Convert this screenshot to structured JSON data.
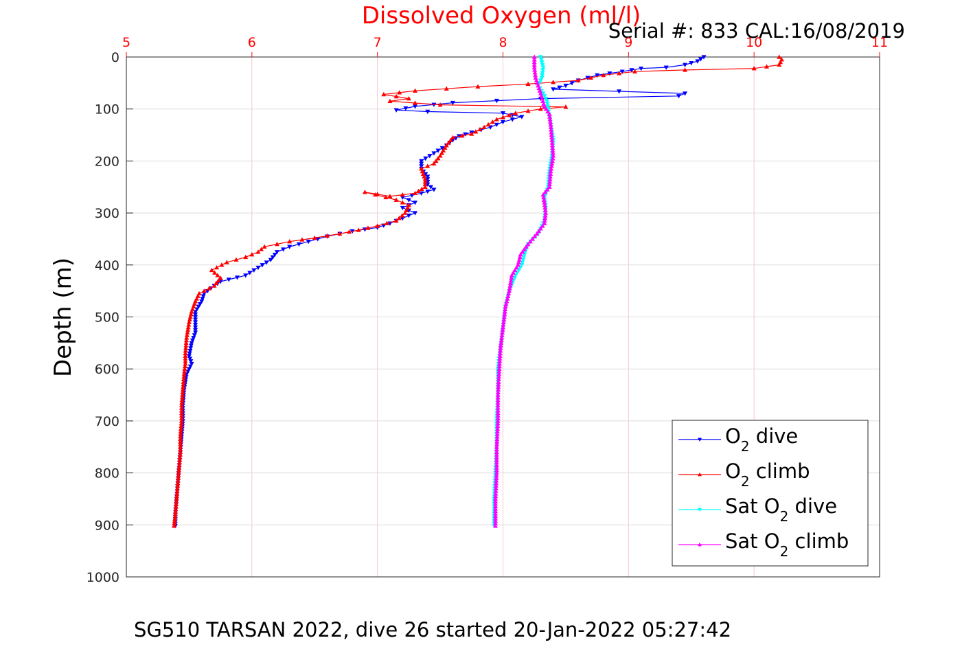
{
  "chart_data": {
    "type": "line",
    "title": "Dissolved Oxygen (ml/l)",
    "serial_label": "Serial #: 833  CAL:16/08/2019",
    "caption": "SG510 TARSAN 2022, dive 26 started 20-Jan-2022 05:27:42",
    "xlabel": "Dissolved Oxygen (ml/l)",
    "ylabel": "Depth (m)",
    "xlim": [
      5,
      11
    ],
    "ylim": [
      0,
      1000
    ],
    "y_reversed": true,
    "x_axis_position": "top",
    "xticks": [
      "5",
      "6",
      "7",
      "8",
      "9",
      "10",
      "11"
    ],
    "yticks": [
      "0",
      "100",
      "200",
      "300",
      "400",
      "500",
      "600",
      "700",
      "800",
      "900",
      "1000"
    ],
    "grid": true,
    "legend_position": "bottom-right",
    "legend": [
      {
        "base": "O",
        "sub": "2",
        "rest": " dive"
      },
      {
        "base": "O",
        "sub": "2",
        "rest": " climb"
      },
      {
        "base": "Sat O",
        "sub": "2",
        "rest": " dive"
      },
      {
        "base": "Sat O",
        "sub": "2",
        "rest": " climb"
      }
    ],
    "series": [
      {
        "name": "O2 dive",
        "color": "#0000ff",
        "marker": "triangle-down",
        "points": [
          [
            9.6,
            0
          ],
          [
            9.55,
            8
          ],
          [
            9.45,
            15
          ],
          [
            9.3,
            20
          ],
          [
            9.1,
            22
          ],
          [
            8.95,
            28
          ],
          [
            8.75,
            35
          ],
          [
            8.6,
            45
          ],
          [
            8.5,
            55
          ],
          [
            8.4,
            62
          ],
          [
            9.45,
            70
          ],
          [
            9.4,
            75
          ],
          [
            8.3,
            80
          ],
          [
            7.6,
            88
          ],
          [
            7.3,
            95
          ],
          [
            7.15,
            102
          ],
          [
            7.4,
            105
          ],
          [
            8.0,
            108
          ],
          [
            8.15,
            115
          ],
          [
            8.0,
            125
          ],
          [
            7.9,
            135
          ],
          [
            7.75,
            145
          ],
          [
            7.65,
            152
          ],
          [
            7.6,
            160
          ],
          [
            7.55,
            170
          ],
          [
            7.45,
            185
          ],
          [
            7.35,
            200
          ],
          [
            7.35,
            215
          ],
          [
            7.4,
            230
          ],
          [
            7.4,
            245
          ],
          [
            7.45,
            255
          ],
          [
            7.35,
            262
          ],
          [
            7.2,
            270
          ],
          [
            7.3,
            280
          ],
          [
            7.2,
            290
          ],
          [
            7.3,
            300
          ],
          [
            7.1,
            320
          ],
          [
            7.0,
            328
          ],
          [
            6.8,
            335
          ],
          [
            6.6,
            345
          ],
          [
            6.45,
            355
          ],
          [
            6.3,
            365
          ],
          [
            6.2,
            375
          ],
          [
            6.15,
            390
          ],
          [
            6.05,
            405
          ],
          [
            5.95,
            420
          ],
          [
            5.75,
            432
          ],
          [
            5.7,
            440
          ],
          [
            5.62,
            455
          ],
          [
            5.6,
            470
          ],
          [
            5.55,
            490
          ],
          [
            5.55,
            510
          ],
          [
            5.55,
            530
          ],
          [
            5.52,
            550
          ],
          [
            5.5,
            575
          ],
          [
            5.52,
            590
          ],
          [
            5.48,
            610
          ],
          [
            5.46,
            640
          ],
          [
            5.45,
            670
          ],
          [
            5.45,
            700
          ],
          [
            5.44,
            730
          ],
          [
            5.43,
            760
          ],
          [
            5.42,
            790
          ],
          [
            5.41,
            820
          ],
          [
            5.4,
            850
          ],
          [
            5.39,
            880
          ],
          [
            5.39,
            902
          ]
        ]
      },
      {
        "name": "O2 climb",
        "color": "#ff0000",
        "marker": "triangle-up",
        "points": [
          [
            5.38,
            902
          ],
          [
            5.39,
            880
          ],
          [
            5.4,
            850
          ],
          [
            5.41,
            820
          ],
          [
            5.42,
            790
          ],
          [
            5.43,
            760
          ],
          [
            5.43,
            730
          ],
          [
            5.44,
            700
          ],
          [
            5.44,
            670
          ],
          [
            5.45,
            640
          ],
          [
            5.46,
            610
          ],
          [
            5.47,
            590
          ],
          [
            5.47,
            570
          ],
          [
            5.48,
            540
          ],
          [
            5.5,
            510
          ],
          [
            5.52,
            490
          ],
          [
            5.55,
            470
          ],
          [
            5.58,
            455
          ],
          [
            5.7,
            440
          ],
          [
            5.75,
            425
          ],
          [
            5.68,
            410
          ],
          [
            5.8,
            395
          ],
          [
            5.95,
            385
          ],
          [
            6.05,
            375
          ],
          [
            6.1,
            365
          ],
          [
            6.3,
            355
          ],
          [
            6.5,
            348
          ],
          [
            6.7,
            340
          ],
          [
            6.85,
            333
          ],
          [
            7.0,
            325
          ],
          [
            7.15,
            315
          ],
          [
            7.22,
            300
          ],
          [
            7.25,
            285
          ],
          [
            7.15,
            275
          ],
          [
            6.9,
            260
          ],
          [
            7.1,
            268
          ],
          [
            7.3,
            262
          ],
          [
            7.38,
            250
          ],
          [
            7.38,
            235
          ],
          [
            7.35,
            215
          ],
          [
            7.45,
            205
          ],
          [
            7.5,
            190
          ],
          [
            7.55,
            170
          ],
          [
            7.6,
            155
          ],
          [
            7.75,
            148
          ],
          [
            7.85,
            135
          ],
          [
            7.95,
            120
          ],
          [
            8.1,
            108
          ],
          [
            8.3,
            100
          ],
          [
            8.5,
            96
          ],
          [
            7.5,
            92
          ],
          [
            7.1,
            85
          ],
          [
            7.25,
            80
          ],
          [
            7.05,
            72
          ],
          [
            7.3,
            65
          ],
          [
            7.8,
            57
          ],
          [
            8.2,
            52
          ],
          [
            8.6,
            45
          ],
          [
            8.8,
            35
          ],
          [
            9.05,
            28
          ],
          [
            9.45,
            25
          ],
          [
            10.0,
            22
          ],
          [
            10.2,
            15
          ],
          [
            10.22,
            5
          ],
          [
            10.2,
            0
          ]
        ]
      },
      {
        "name": "Sat O2 dive",
        "color": "#00ffff",
        "marker": "triangle-down",
        "points": [
          [
            8.3,
            0
          ],
          [
            8.32,
            20
          ],
          [
            8.31,
            40
          ],
          [
            8.28,
            55
          ],
          [
            8.32,
            70
          ],
          [
            8.35,
            85
          ],
          [
            8.36,
            100
          ],
          [
            8.38,
            130
          ],
          [
            8.4,
            160
          ],
          [
            8.39,
            190
          ],
          [
            8.37,
            220
          ],
          [
            8.36,
            250
          ],
          [
            8.33,
            270
          ],
          [
            8.34,
            290
          ],
          [
            8.33,
            315
          ],
          [
            8.28,
            340
          ],
          [
            8.2,
            360
          ],
          [
            8.17,
            380
          ],
          [
            8.15,
            400
          ],
          [
            8.1,
            420
          ],
          [
            8.05,
            450
          ],
          [
            8.02,
            480
          ],
          [
            8.0,
            520
          ],
          [
            7.98,
            560
          ],
          [
            7.96,
            600
          ],
          [
            7.96,
            650
          ],
          [
            7.95,
            700
          ],
          [
            7.95,
            750
          ],
          [
            7.94,
            800
          ],
          [
            7.93,
            850
          ],
          [
            7.93,
            902
          ]
        ]
      },
      {
        "name": "Sat O2 climb",
        "color": "#ff00ff",
        "marker": "triangle-up",
        "points": [
          [
            7.94,
            902
          ],
          [
            7.94,
            850
          ],
          [
            7.95,
            800
          ],
          [
            7.95,
            750
          ],
          [
            7.96,
            700
          ],
          [
            7.96,
            650
          ],
          [
            7.97,
            600
          ],
          [
            7.98,
            560
          ],
          [
            8.0,
            520
          ],
          [
            8.02,
            480
          ],
          [
            8.05,
            450
          ],
          [
            8.07,
            420
          ],
          [
            8.12,
            400
          ],
          [
            8.14,
            380
          ],
          [
            8.2,
            360
          ],
          [
            8.27,
            340
          ],
          [
            8.33,
            320
          ],
          [
            8.34,
            300
          ],
          [
            8.33,
            280
          ],
          [
            8.32,
            265
          ],
          [
            8.37,
            250
          ],
          [
            8.38,
            220
          ],
          [
            8.4,
            190
          ],
          [
            8.39,
            160
          ],
          [
            8.38,
            130
          ],
          [
            8.37,
            110
          ],
          [
            8.33,
            95
          ],
          [
            8.3,
            70
          ],
          [
            8.28,
            55
          ],
          [
            8.26,
            40
          ],
          [
            8.25,
            20
          ],
          [
            8.25,
            0
          ]
        ]
      }
    ]
  }
}
